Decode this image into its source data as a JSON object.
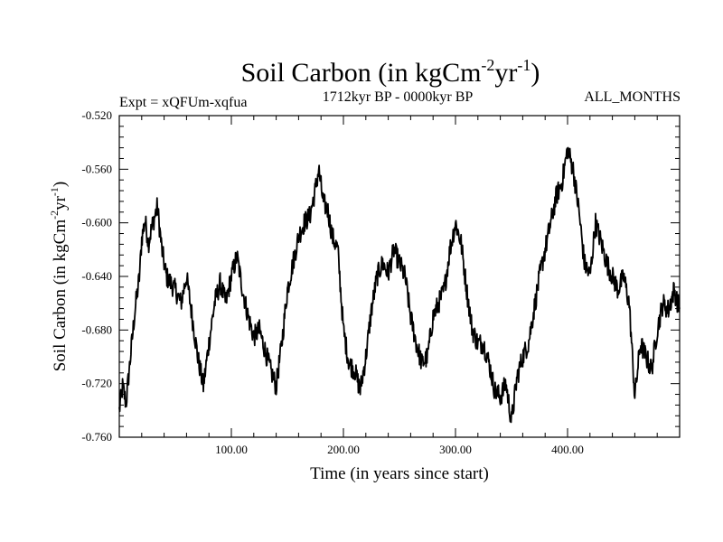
{
  "chart_data": {
    "type": "line",
    "title_main": "Soil Carbon (in kgCm",
    "title_exp1": "-2",
    "title_mid": "yr",
    "title_exp2": "-1",
    "title_close": ")",
    "subtitle_left": "Expt = xQFUm-xqfua",
    "subtitle_center": "1712kyr BP - 0000kyr BP",
    "subtitle_right": "ALL_MONTHS",
    "xlabel": "Time (in years since start)",
    "ylabel_main": "Soil Carbon (in kgCm",
    "ylabel_exp1": "-2",
    "ylabel_mid": "yr",
    "ylabel_exp2": "-1",
    "ylabel_close": ")",
    "xlim": [
      0,
      500
    ],
    "ylim": [
      -0.76,
      -0.52
    ],
    "xticks": [
      100,
      200,
      300,
      400
    ],
    "xtick_labels": [
      "100.00",
      "200.00",
      "300.00",
      "400.00"
    ],
    "yticks": [
      -0.52,
      -0.56,
      -0.6,
      -0.64,
      -0.68,
      -0.72,
      -0.76
    ],
    "ytick_labels": [
      "-0.520",
      "-0.560",
      "-0.600",
      "-0.640",
      "-0.680",
      "-0.720",
      "-0.760"
    ],
    "series": [
      {
        "name": "Soil Carbon",
        "color": "#000000",
        "x": [
          0,
          3,
          6,
          10,
          14,
          18,
          20,
          23,
          26,
          30,
          34,
          38,
          42,
          46,
          50,
          55,
          60,
          65,
          70,
          75,
          80,
          85,
          90,
          95,
          100,
          105,
          110,
          115,
          120,
          125,
          130,
          135,
          140,
          145,
          150,
          155,
          160,
          165,
          170,
          175,
          178,
          182,
          186,
          190,
          195,
          200,
          205,
          210,
          215,
          220,
          225,
          230,
          235,
          240,
          245,
          250,
          255,
          260,
          265,
          270,
          275,
          280,
          285,
          290,
          295,
          300,
          305,
          310,
          315,
          320,
          325,
          330,
          335,
          340,
          345,
          350,
          355,
          360,
          365,
          370,
          375,
          380,
          385,
          390,
          395,
          400,
          405,
          410,
          415,
          420,
          425,
          430,
          435,
          440,
          445,
          450,
          455,
          460,
          465,
          470,
          475,
          480,
          485,
          490,
          495,
          500
        ],
        "values": [
          -0.74,
          -0.722,
          -0.735,
          -0.7,
          -0.665,
          -0.64,
          -0.612,
          -0.598,
          -0.615,
          -0.6,
          -0.588,
          -0.62,
          -0.64,
          -0.645,
          -0.65,
          -0.66,
          -0.64,
          -0.67,
          -0.7,
          -0.722,
          -0.69,
          -0.66,
          -0.645,
          -0.66,
          -0.64,
          -0.625,
          -0.65,
          -0.67,
          -0.685,
          -0.68,
          -0.695,
          -0.71,
          -0.722,
          -0.69,
          -0.65,
          -0.63,
          -0.61,
          -0.6,
          -0.595,
          -0.575,
          -0.56,
          -0.585,
          -0.59,
          -0.61,
          -0.62,
          -0.68,
          -0.705,
          -0.71,
          -0.725,
          -0.7,
          -0.665,
          -0.64,
          -0.63,
          -0.638,
          -0.62,
          -0.63,
          -0.64,
          -0.67,
          -0.69,
          -0.705,
          -0.7,
          -0.67,
          -0.66,
          -0.65,
          -0.62,
          -0.6,
          -0.615,
          -0.65,
          -0.68,
          -0.69,
          -0.69,
          -0.705,
          -0.725,
          -0.73,
          -0.72,
          -0.748,
          -0.715,
          -0.7,
          -0.69,
          -0.665,
          -0.64,
          -0.62,
          -0.6,
          -0.58,
          -0.57,
          -0.545,
          -0.56,
          -0.59,
          -0.63,
          -0.64,
          -0.6,
          -0.615,
          -0.63,
          -0.64,
          -0.65,
          -0.64,
          -0.66,
          -0.73,
          -0.69,
          -0.7,
          -0.71,
          -0.68,
          -0.66,
          -0.665,
          -0.65,
          -0.665
        ]
      }
    ]
  }
}
